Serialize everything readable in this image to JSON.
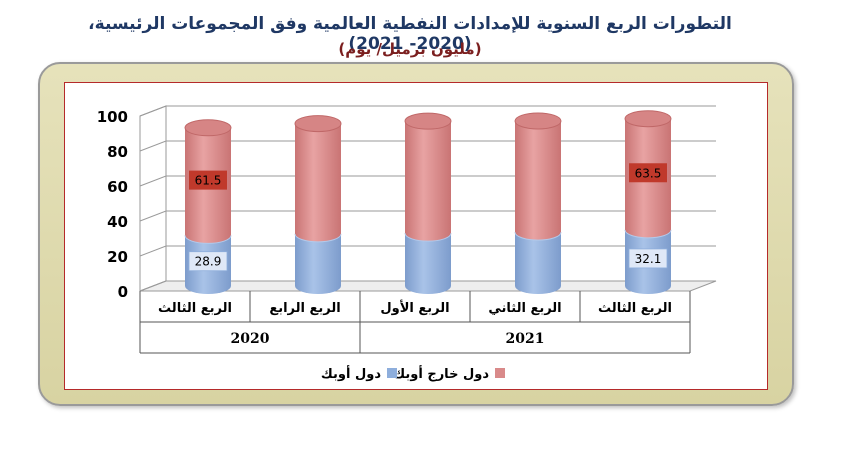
{
  "title_line1": "التطورات الربع السنوية للإمدادات النفطية العالمية وفق المجموعات الرئيسية، (2020- 2021)",
  "title_line2": "(مليون برميل/ يوم)",
  "colors": {
    "opec": "#8eaedc",
    "non_opec": "#d98a8a",
    "opec_label_bg": "#dfe8f7",
    "non_opec_label_bg": "#c0392b"
  },
  "chart_data": {
    "type": "bar",
    "stacked": true,
    "categories": [
      "الربع الثالث",
      "الربع الرابع",
      "الربع الأول",
      "الربع الثاني",
      "الربع الثالث"
    ],
    "years": [
      {
        "label": "2020",
        "categories": [
          0,
          1
        ]
      },
      {
        "label": "2021",
        "categories": [
          2,
          3,
          4
        ]
      }
    ],
    "series": [
      {
        "name": "دول أوبك",
        "values": [
          28.9,
          29.8,
          30.2,
          30.8,
          32.1
        ],
        "labels": [
          "28.9",
          "",
          "",
          "",
          "32.1"
        ]
      },
      {
        "name": "دول خارج أوبك",
        "values": [
          61.5,
          63.0,
          64.0,
          63.5,
          63.5
        ],
        "labels": [
          "61.5",
          "",
          "",
          "",
          "63.5"
        ]
      }
    ],
    "yticks": [
      "0",
      "20",
      "40",
      "60",
      "80",
      "100"
    ],
    "ylim": [
      0,
      100
    ],
    "legend": "bottom"
  }
}
